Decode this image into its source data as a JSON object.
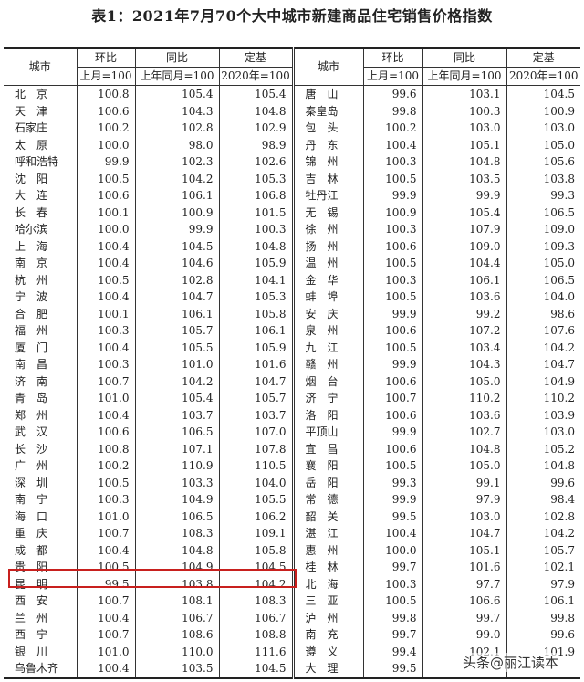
{
  "title": "表1：2021年7月70个大中城市新建商品住宅销售价格指数",
  "headers": {
    "city": "城市",
    "mom": "环比",
    "yoy": "同比",
    "base": "定基",
    "mom_sub": "上月=100",
    "yoy_sub": "上年同月=100",
    "base_sub": "2020年=100"
  },
  "highlight_color": "#c8201e",
  "highlighted_city": "昆　明",
  "watermark": "头条@丽江读本",
  "left": [
    [
      "北　京",
      "100.8",
      "105.4",
      "105.4"
    ],
    [
      "天　津",
      "100.6",
      "104.3",
      "104.8"
    ],
    [
      "石家庄",
      "100.2",
      "102.8",
      "102.9"
    ],
    [
      "太　原",
      "100.0",
      "98.0",
      "98.9"
    ],
    [
      "呼和浩特",
      "99.9",
      "102.3",
      "102.6"
    ],
    [
      "沈　阳",
      "100.5",
      "104.2",
      "105.3"
    ],
    [
      "大　连",
      "100.6",
      "106.1",
      "106.8"
    ],
    [
      "长　春",
      "100.1",
      "100.9",
      "101.5"
    ],
    [
      "哈尔滨",
      "100.0",
      "99.9",
      "100.3"
    ],
    [
      "上　海",
      "100.4",
      "104.5",
      "104.8"
    ],
    [
      "南　京",
      "100.4",
      "104.6",
      "105.9"
    ],
    [
      "杭　州",
      "100.5",
      "102.8",
      "104.1"
    ],
    [
      "宁　波",
      "100.4",
      "104.7",
      "105.3"
    ],
    [
      "合　肥",
      "100.1",
      "106.1",
      "105.8"
    ],
    [
      "福　州",
      "100.3",
      "105.7",
      "106.1"
    ],
    [
      "厦　门",
      "100.4",
      "105.5",
      "105.9"
    ],
    [
      "南　昌",
      "100.3",
      "101.0",
      "101.6"
    ],
    [
      "济　南",
      "100.7",
      "104.2",
      "104.7"
    ],
    [
      "青　岛",
      "101.0",
      "105.4",
      "105.7"
    ],
    [
      "郑　州",
      "100.4",
      "103.7",
      "103.7"
    ],
    [
      "武　汉",
      "100.6",
      "106.5",
      "107.0"
    ],
    [
      "长　沙",
      "100.8",
      "107.1",
      "107.8"
    ],
    [
      "广　州",
      "100.2",
      "110.9",
      "110.5"
    ],
    [
      "深　圳",
      "100.5",
      "103.3",
      "104.0"
    ],
    [
      "南　宁",
      "100.3",
      "104.9",
      "105.5"
    ],
    [
      "海　口",
      "101.0",
      "106.5",
      "106.2"
    ],
    [
      "重　庆",
      "100.7",
      "108.3",
      "109.1"
    ],
    [
      "成　都",
      "100.4",
      "104.8",
      "105.8"
    ],
    [
      "贵　阳",
      "100.5",
      "104.9",
      "104.5"
    ],
    [
      "昆　明",
      "99.5",
      "103.8",
      "104.2"
    ],
    [
      "西　安",
      "100.7",
      "108.1",
      "108.3"
    ],
    [
      "兰　州",
      "100.4",
      "106.7",
      "106.7"
    ],
    [
      "西　宁",
      "100.7",
      "108.6",
      "108.8"
    ],
    [
      "银　川",
      "101.0",
      "110.0",
      "111.6"
    ],
    [
      "乌鲁木齐",
      "100.4",
      "103.5",
      "104.5"
    ]
  ],
  "right": [
    [
      "唐　山",
      "99.6",
      "103.1",
      "104.5"
    ],
    [
      "秦皇岛",
      "99.8",
      "100.3",
      "100.9"
    ],
    [
      "包　头",
      "100.2",
      "103.0",
      "103.0"
    ],
    [
      "丹　东",
      "100.4",
      "105.1",
      "105.0"
    ],
    [
      "锦　州",
      "100.3",
      "104.8",
      "105.6"
    ],
    [
      "吉　林",
      "100.5",
      "103.5",
      "103.8"
    ],
    [
      "牡丹江",
      "99.9",
      "99.9",
      "99.3"
    ],
    [
      "无　锡",
      "100.9",
      "105.4",
      "106.5"
    ],
    [
      "徐　州",
      "100.3",
      "107.9",
      "109.0"
    ],
    [
      "扬　州",
      "100.6",
      "109.0",
      "109.3"
    ],
    [
      "温　州",
      "100.5",
      "104.4",
      "105.0"
    ],
    [
      "金　华",
      "100.3",
      "106.1",
      "106.5"
    ],
    [
      "蚌　埠",
      "100.5",
      "103.6",
      "104.0"
    ],
    [
      "安　庆",
      "99.9",
      "99.2",
      "98.6"
    ],
    [
      "泉　州",
      "100.6",
      "107.2",
      "107.6"
    ],
    [
      "九　江",
      "100.5",
      "103.4",
      "104.2"
    ],
    [
      "赣　州",
      "99.9",
      "104.3",
      "104.7"
    ],
    [
      "烟　台",
      "100.6",
      "105.0",
      "104.9"
    ],
    [
      "济　宁",
      "100.7",
      "110.2",
      "110.2"
    ],
    [
      "洛　阳",
      "100.6",
      "103.6",
      "103.9"
    ],
    [
      "平顶山",
      "99.9",
      "102.7",
      "103.0"
    ],
    [
      "宜　昌",
      "100.6",
      "104.8",
      "105.2"
    ],
    [
      "襄　阳",
      "100.5",
      "105.0",
      "104.8"
    ],
    [
      "岳　阳",
      "99.3",
      "99.1",
      "99.6"
    ],
    [
      "常　德",
      "99.9",
      "97.9",
      "98.4"
    ],
    [
      "韶　关",
      "99.5",
      "103.0",
      "102.8"
    ],
    [
      "湛　江",
      "100.4",
      "104.7",
      "104.2"
    ],
    [
      "惠　州",
      "100.0",
      "105.1",
      "105.7"
    ],
    [
      "桂　林",
      "99.7",
      "101.6",
      "102.1"
    ],
    [
      "北　海",
      "100.3",
      "97.7",
      "97.9"
    ],
    [
      "三　亚",
      "100.5",
      "106.6",
      "106.1"
    ],
    [
      "泸　州",
      "99.8",
      "99.7",
      "99.8"
    ],
    [
      "南　充",
      "99.7",
      "99.0",
      "99.6"
    ],
    [
      "遵　义",
      "99.4",
      "102.1",
      "101.9"
    ],
    [
      "大　理",
      "99.5",
      "",
      ""
    ]
  ]
}
